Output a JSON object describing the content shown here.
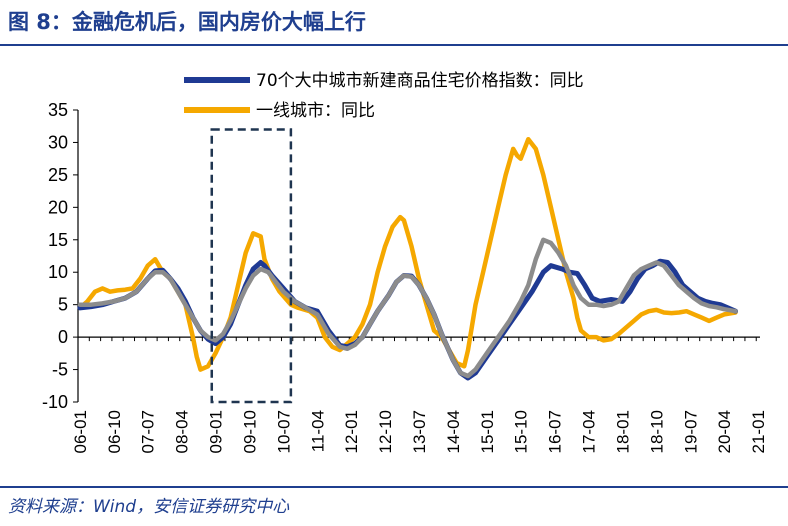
{
  "header": {
    "title": "图 8：金融危机后，国内房价大幅上行"
  },
  "footer": {
    "source": "资料来源：Wind，安信证券研究中心"
  },
  "colors": {
    "accent": "#1f3f8f",
    "series_70city": "#1f3a93",
    "series_tier1": "#f5a800",
    "overlay_gray": "#8c8c8c"
  },
  "chart_data": {
    "type": "line",
    "title": "",
    "xlabel": "",
    "ylabel": "",
    "ylim": [
      -10,
      35
    ],
    "yticks": [
      35,
      30,
      25,
      20,
      15,
      10,
      5,
      0,
      -5,
      -10
    ],
    "xticks": [
      "06-01",
      "06-10",
      "07-07",
      "08-04",
      "09-01",
      "09-10",
      "10-07",
      "11-04",
      "12-01",
      "12-10",
      "13-07",
      "14-04",
      "15-01",
      "15-10",
      "16-07",
      "17-04",
      "18-01",
      "18-10",
      "19-07",
      "20-04",
      "21-01"
    ],
    "grid": false,
    "legend_position": "top",
    "highlight_box": {
      "x_range": [
        "08-12",
        "10-09"
      ],
      "y_range": [
        -10,
        32
      ]
    },
    "series": [
      {
        "name": "70个大中城市新建商品住宅价格指数：同比",
        "color": "#1f3a93",
        "points": [
          [
            0,
            4.5
          ],
          [
            3,
            4.7
          ],
          [
            6,
            5
          ],
          [
            9,
            5.5
          ],
          [
            12,
            6
          ],
          [
            15,
            7
          ],
          [
            18,
            9
          ],
          [
            20,
            10.2
          ],
          [
            22,
            10.3
          ],
          [
            24,
            9
          ],
          [
            26,
            7.5
          ],
          [
            28,
            5.5
          ],
          [
            30,
            3
          ],
          [
            32,
            1
          ],
          [
            34,
            -0.3
          ],
          [
            36,
            -1
          ],
          [
            38,
            0
          ],
          [
            40,
            2
          ],
          [
            42,
            5
          ],
          [
            44,
            8
          ],
          [
            46,
            10.5
          ],
          [
            48,
            11.5
          ],
          [
            49,
            11
          ],
          [
            51,
            9.5
          ],
          [
            54,
            7.5
          ],
          [
            57,
            5.5
          ],
          [
            60,
            4.5
          ],
          [
            63,
            4
          ],
          [
            66,
            1
          ],
          [
            69,
            -1.3
          ],
          [
            71,
            -1.5
          ],
          [
            73,
            -1
          ],
          [
            75,
            0
          ],
          [
            77,
            2
          ],
          [
            79,
            4
          ],
          [
            82,
            6.5
          ],
          [
            84,
            8.5
          ],
          [
            86,
            9.5
          ],
          [
            88,
            9.4
          ],
          [
            90,
            8
          ],
          [
            92,
            6
          ],
          [
            94,
            3.5
          ],
          [
            96,
            0.5
          ],
          [
            99,
            -3.5
          ],
          [
            101,
            -5.5
          ],
          [
            103,
            -6.3
          ],
          [
            105,
            -5.5
          ],
          [
            108,
            -3
          ],
          [
            111,
            -0.5
          ],
          [
            114,
            2
          ],
          [
            117,
            4.5
          ],
          [
            120,
            7
          ],
          [
            123,
            10
          ],
          [
            125,
            11
          ],
          [
            128,
            10.5
          ],
          [
            130,
            10
          ],
          [
            132,
            9.8
          ],
          [
            134,
            8
          ],
          [
            136,
            6
          ],
          [
            138,
            5.5
          ],
          [
            141,
            5.8
          ],
          [
            144,
            5.5
          ],
          [
            146,
            7
          ],
          [
            148,
            9
          ],
          [
            150,
            10.5
          ],
          [
            152,
            11
          ],
          [
            154,
            11.7
          ],
          [
            156,
            11.5
          ],
          [
            158,
            10
          ],
          [
            160,
            8
          ],
          [
            162,
            7
          ],
          [
            164,
            6
          ],
          [
            166,
            5.5
          ],
          [
            168,
            5.2
          ],
          [
            170,
            5
          ],
          [
            172,
            4.5
          ],
          [
            174,
            4
          ]
        ]
      },
      {
        "name": "一线城市：同比",
        "color": "#f5a800",
        "points": [
          [
            0,
            4.5
          ],
          [
            2,
            5.5
          ],
          [
            4,
            7
          ],
          [
            6,
            7.5
          ],
          [
            8,
            7
          ],
          [
            10,
            7.2
          ],
          [
            12,
            7.3
          ],
          [
            14,
            7.5
          ],
          [
            16,
            9
          ],
          [
            18,
            11
          ],
          [
            20,
            12
          ],
          [
            22,
            10
          ],
          [
            24,
            9
          ],
          [
            26,
            7
          ],
          [
            28,
            5
          ],
          [
            30,
            0
          ],
          [
            31,
            -3
          ],
          [
            32,
            -5
          ],
          [
            34,
            -4.5
          ],
          [
            36,
            -2.5
          ],
          [
            38,
            0
          ],
          [
            40,
            3
          ],
          [
            42,
            8
          ],
          [
            44,
            13
          ],
          [
            46,
            16
          ],
          [
            48,
            15.5
          ],
          [
            49,
            12
          ],
          [
            51,
            9
          ],
          [
            53,
            7
          ],
          [
            56,
            5
          ],
          [
            58,
            4.5
          ],
          [
            61,
            4
          ],
          [
            63,
            3
          ],
          [
            65,
            0
          ],
          [
            67,
            -1.5
          ],
          [
            69,
            -2
          ],
          [
            71,
            -1
          ],
          [
            73,
            0
          ],
          [
            75,
            2
          ],
          [
            77,
            5
          ],
          [
            79,
            10
          ],
          [
            81,
            14
          ],
          [
            83,
            17
          ],
          [
            85,
            18.5
          ],
          [
            86,
            18
          ],
          [
            88,
            14
          ],
          [
            90,
            9
          ],
          [
            92,
            5
          ],
          [
            94,
            1
          ],
          [
            96,
            0
          ],
          [
            98,
            -2
          ],
          [
            100,
            -4
          ],
          [
            102,
            -4.5
          ],
          [
            103,
            -2
          ],
          [
            105,
            5
          ],
          [
            107,
            10
          ],
          [
            109,
            15
          ],
          [
            111,
            20
          ],
          [
            113,
            25
          ],
          [
            115,
            29
          ],
          [
            116,
            28
          ],
          [
            117,
            27.5
          ],
          [
            119,
            30.5
          ],
          [
            121,
            29
          ],
          [
            123,
            25
          ],
          [
            125,
            20
          ],
          [
            127,
            15
          ],
          [
            129,
            10
          ],
          [
            131,
            6
          ],
          [
            132,
            3
          ],
          [
            133,
            1
          ],
          [
            135,
            0
          ],
          [
            137,
            0
          ],
          [
            139,
            -0.5
          ],
          [
            141,
            -0.3
          ],
          [
            143,
            0.5
          ],
          [
            145,
            1.5
          ],
          [
            147,
            2.5
          ],
          [
            149,
            3.5
          ],
          [
            151,
            4
          ],
          [
            153,
            4.2
          ],
          [
            155,
            3.8
          ],
          [
            157,
            3.7
          ],
          [
            159,
            3.8
          ],
          [
            161,
            4
          ],
          [
            163,
            3.5
          ],
          [
            165,
            3
          ],
          [
            167,
            2.5
          ],
          [
            169,
            3
          ],
          [
            171,
            3.5
          ],
          [
            174,
            3.8
          ]
        ]
      },
      {
        "name": "",
        "color": "#8c8c8c",
        "points": [
          [
            0,
            5
          ],
          [
            3,
            5
          ],
          [
            6,
            5.2
          ],
          [
            9,
            5.5
          ],
          [
            12,
            6
          ],
          [
            15,
            7
          ],
          [
            18,
            9
          ],
          [
            20,
            10
          ],
          [
            22,
            10
          ],
          [
            24,
            9
          ],
          [
            26,
            7
          ],
          [
            28,
            5
          ],
          [
            30,
            3
          ],
          [
            32,
            1
          ],
          [
            34,
            0
          ],
          [
            36,
            -0.5
          ],
          [
            38,
            0.5
          ],
          [
            40,
            2.5
          ],
          [
            42,
            5
          ],
          [
            44,
            7.5
          ],
          [
            46,
            9.5
          ],
          [
            48,
            10.5
          ],
          [
            50,
            10
          ],
          [
            52,
            8.5
          ],
          [
            54,
            7
          ],
          [
            57,
            5.5
          ],
          [
            60,
            4.5
          ],
          [
            63,
            3.5
          ],
          [
            66,
            0.5
          ],
          [
            69,
            -1.5
          ],
          [
            71,
            -1.8
          ],
          [
            73,
            -1.2
          ],
          [
            75,
            0
          ],
          [
            77,
            2
          ],
          [
            79,
            4
          ],
          [
            82,
            6.5
          ],
          [
            84,
            8.5
          ],
          [
            86,
            9.5
          ],
          [
            88,
            9.3
          ],
          [
            90,
            8
          ],
          [
            92,
            6
          ],
          [
            94,
            3.5
          ],
          [
            96,
            0.5
          ],
          [
            99,
            -3.5
          ],
          [
            101,
            -5.5
          ],
          [
            103,
            -6
          ],
          [
            105,
            -5
          ],
          [
            108,
            -2.5
          ],
          [
            111,
            0
          ],
          [
            114,
            2.5
          ],
          [
            117,
            5.5
          ],
          [
            119,
            8
          ],
          [
            121,
            12
          ],
          [
            123,
            15
          ],
          [
            125,
            14.5
          ],
          [
            127,
            13
          ],
          [
            129,
            11
          ],
          [
            131,
            8
          ],
          [
            133,
            6
          ],
          [
            135,
            5
          ],
          [
            137,
            5
          ],
          [
            139,
            4.8
          ],
          [
            141,
            5
          ],
          [
            143,
            5.5
          ],
          [
            145,
            7.5
          ],
          [
            147,
            9.5
          ],
          [
            149,
            10.5
          ],
          [
            151,
            11
          ],
          [
            153,
            11.5
          ],
          [
            155,
            11
          ],
          [
            157,
            9.5
          ],
          [
            159,
            8
          ],
          [
            161,
            7
          ],
          [
            163,
            6
          ],
          [
            165,
            5.2
          ],
          [
            167,
            4.8
          ],
          [
            169,
            4.6
          ],
          [
            171,
            4.3
          ],
          [
            174,
            4
          ]
        ]
      }
    ]
  }
}
